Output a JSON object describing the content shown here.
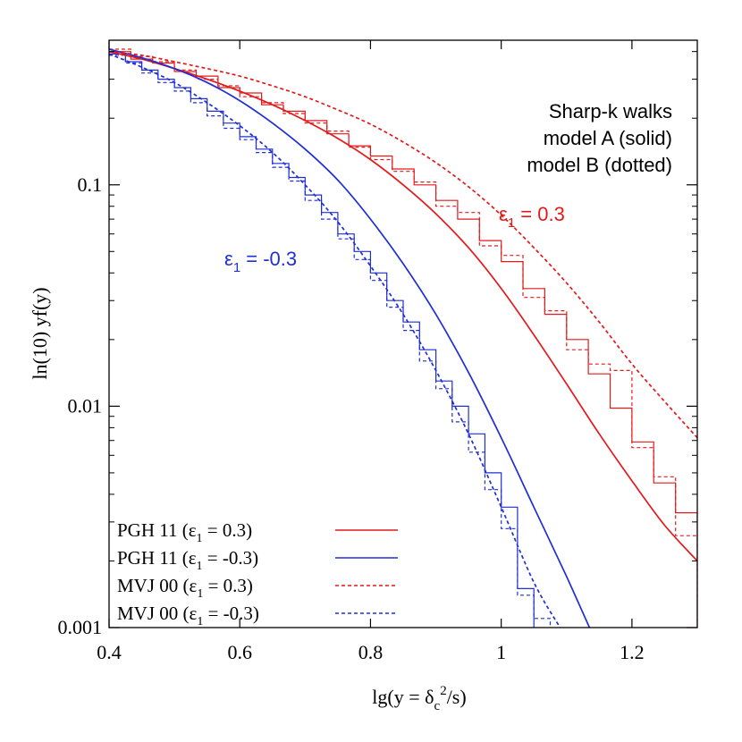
{
  "chart_data": {
    "type": "line",
    "xlabel_parts": [
      "lg(y = δ",
      "c",
      "2",
      "/s)"
    ],
    "ylabel": "ln(10) yf(y)",
    "xlim": [
      0.4,
      1.3
    ],
    "ylim": [
      0.001,
      0.45
    ],
    "yscale": "log",
    "grid": false,
    "x_ticks": [
      0.4,
      0.6,
      0.8,
      1.0,
      1.2
    ],
    "x_tick_labels": [
      "0.4",
      "0.6",
      "0.8",
      "1",
      "1.2"
    ],
    "y_ticks": [
      0.001,
      0.01,
      0.1
    ],
    "y_tick_labels": [
      "0.001",
      "0.01",
      "0.1"
    ],
    "notes": [
      "Sharp-k walks",
      "model A (solid)",
      "model B (dotted)"
    ],
    "annotations": [
      {
        "parts": [
          "ε",
          "1",
          " = 0.3"
        ],
        "color": "#e31a1c"
      },
      {
        "parts": [
          "ε",
          "1",
          " = -0.3"
        ],
        "color": "#1f2fd6"
      }
    ],
    "legend_position": "bottom-left",
    "series": [
      {
        "legend_parts": [
          "PGH 11 (ε",
          "1",
          " = 0.3)"
        ],
        "color": "#e31a1c",
        "dash": "solid",
        "x": [
          0.4,
          0.45,
          0.5,
          0.55,
          0.6,
          0.65,
          0.7,
          0.75,
          0.8,
          0.85,
          0.9,
          0.95,
          1.0,
          1.05,
          1.1,
          1.15,
          1.2,
          1.25,
          1.3
        ],
        "y": [
          0.4,
          0.37,
          0.335,
          0.3,
          0.265,
          0.23,
          0.195,
          0.162,
          0.13,
          0.1,
          0.074,
          0.052,
          0.034,
          0.021,
          0.0126,
          0.0075,
          0.0046,
          0.0029,
          0.002
        ]
      },
      {
        "legend_parts": [
          "PGH 11 (ε",
          "1",
          " = -0.3)"
        ],
        "color": "#1f2fd6",
        "dash": "solid",
        "x": [
          0.4,
          0.45,
          0.5,
          0.55,
          0.6,
          0.65,
          0.7,
          0.75,
          0.8,
          0.85,
          0.9,
          0.95,
          1.0,
          1.05,
          1.1,
          1.135
        ],
        "y": [
          0.41,
          0.375,
          0.335,
          0.29,
          0.24,
          0.19,
          0.145,
          0.105,
          0.07,
          0.044,
          0.026,
          0.0142,
          0.0072,
          0.0035,
          0.0017,
          0.001
        ]
      },
      {
        "legend_parts": [
          "MVJ 00 (ε",
          "1",
          " = 0.3)"
        ],
        "color": "#e31a1c",
        "dash": "dashed",
        "x": [
          0.4,
          0.45,
          0.5,
          0.55,
          0.6,
          0.65,
          0.7,
          0.75,
          0.8,
          0.85,
          0.9,
          0.95,
          1.0,
          1.05,
          1.1,
          1.15,
          1.2,
          1.25,
          1.3
        ],
        "y": [
          0.4,
          0.385,
          0.36,
          0.335,
          0.31,
          0.28,
          0.25,
          0.218,
          0.188,
          0.156,
          0.126,
          0.098,
          0.073,
          0.052,
          0.036,
          0.024,
          0.0155,
          0.0105,
          0.0072
        ]
      },
      {
        "legend_parts": [
          "MVJ 00 (ε",
          "1",
          " = -0.3)"
        ],
        "color": "#1f2fd6",
        "dash": "dashed",
        "x": [
          0.4,
          0.45,
          0.5,
          0.55,
          0.6,
          0.65,
          0.7,
          0.75,
          0.8,
          0.85,
          0.9,
          0.95,
          1.0,
          1.05,
          1.09
        ],
        "y": [
          0.39,
          0.34,
          0.29,
          0.235,
          0.185,
          0.14,
          0.1,
          0.068,
          0.043,
          0.026,
          0.0145,
          0.0075,
          0.0035,
          0.0016,
          0.001
        ]
      }
    ],
    "histograms": [
      {
        "name": "model A, ε1 = 0.3",
        "color": "#e31a1c",
        "dash": "solid",
        "edges": [
          0.4,
          0.4333,
          0.4667,
          0.5,
          0.5333,
          0.5667,
          0.6,
          0.6333,
          0.6667,
          0.7,
          0.7333,
          0.7667,
          0.8,
          0.8333,
          0.8667,
          0.9,
          0.9333,
          0.9667,
          1.0,
          1.0333,
          1.0667,
          1.1,
          1.1333,
          1.1667,
          1.2,
          1.2333,
          1.2667,
          1.3
        ],
        "values": [
          0.4,
          0.37,
          0.355,
          0.325,
          0.31,
          0.275,
          0.26,
          0.23,
          0.215,
          0.195,
          0.17,
          0.15,
          0.135,
          0.118,
          0.1,
          0.085,
          0.07,
          0.056,
          0.045,
          0.034,
          0.026,
          0.02,
          0.014,
          0.0098,
          0.0069,
          0.0045,
          0.0033
        ]
      },
      {
        "name": "model B, ε1 = 0.3",
        "color": "#e31a1c",
        "dash": "dashed",
        "edges": [
          0.4,
          0.4333,
          0.4667,
          0.5,
          0.5333,
          0.5667,
          0.6,
          0.6333,
          0.6667,
          0.7,
          0.7333,
          0.7667,
          0.8,
          0.8333,
          0.8667,
          0.9,
          0.9333,
          0.9667,
          1.0,
          1.0333,
          1.0667,
          1.1,
          1.1333,
          1.1667,
          1.2,
          1.2333,
          1.2667,
          1.3
        ],
        "values": [
          0.41,
          0.38,
          0.36,
          0.33,
          0.3,
          0.28,
          0.25,
          0.235,
          0.21,
          0.19,
          0.175,
          0.148,
          0.13,
          0.115,
          0.103,
          0.08,
          0.075,
          0.053,
          0.048,
          0.031,
          0.027,
          0.018,
          0.0155,
          0.0145,
          0.0065,
          0.0048,
          0.0026
        ]
      },
      {
        "name": "model A, ε1 = -0.3",
        "color": "#1f2fd6",
        "dash": "solid",
        "edges": [
          0.4,
          0.425,
          0.45,
          0.475,
          0.5,
          0.525,
          0.55,
          0.575,
          0.6,
          0.625,
          0.65,
          0.675,
          0.7,
          0.725,
          0.75,
          0.775,
          0.8,
          0.825,
          0.85,
          0.875,
          0.9,
          0.925,
          0.95,
          0.975,
          1.0,
          1.025,
          1.05
        ],
        "values": [
          0.39,
          0.36,
          0.33,
          0.3,
          0.275,
          0.245,
          0.215,
          0.19,
          0.165,
          0.145,
          0.125,
          0.108,
          0.09,
          0.075,
          0.06,
          0.05,
          0.04,
          0.03,
          0.024,
          0.018,
          0.013,
          0.01,
          0.0075,
          0.005,
          0.0035,
          0.0015
        ]
      },
      {
        "name": "model B, ε1 = -0.3",
        "color": "#1f2fd6",
        "dash": "dashed",
        "edges": [
          0.4,
          0.425,
          0.45,
          0.475,
          0.5,
          0.525,
          0.55,
          0.575,
          0.6,
          0.625,
          0.65,
          0.675,
          0.7,
          0.725,
          0.75,
          0.775,
          0.8,
          0.825,
          0.85,
          0.875,
          0.9,
          0.925,
          0.95,
          0.975,
          1.0,
          1.025,
          1.05,
          1.075
        ],
        "values": [
          0.385,
          0.355,
          0.32,
          0.29,
          0.265,
          0.235,
          0.205,
          0.18,
          0.16,
          0.14,
          0.12,
          0.104,
          0.085,
          0.07,
          0.057,
          0.046,
          0.037,
          0.028,
          0.022,
          0.016,
          0.012,
          0.0085,
          0.0062,
          0.0042,
          0.0028,
          0.0014,
          0.0011
        ]
      }
    ]
  }
}
